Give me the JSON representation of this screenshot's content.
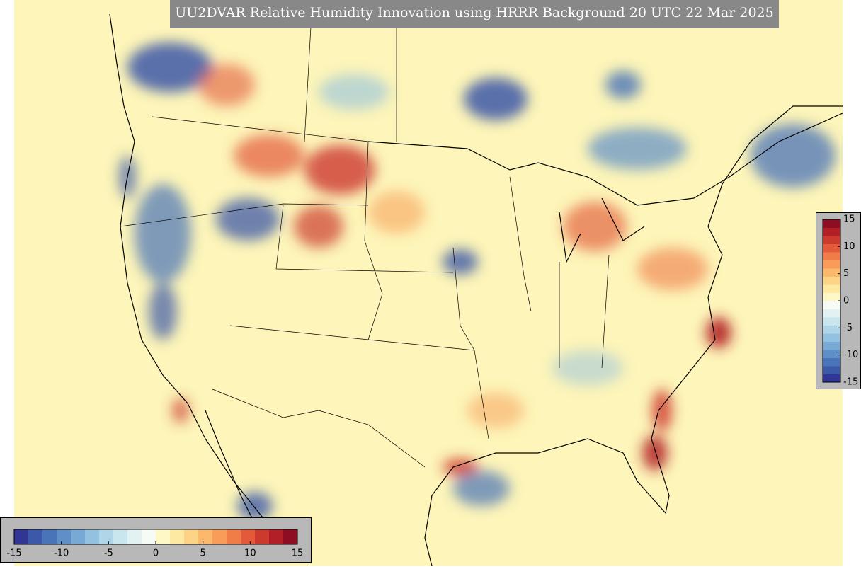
{
  "title": "UU2DVAR Relative Humidity Innovation using HRRR Background 20 UTC 22 Mar 2025",
  "colors": [
    "#313695",
    "#3c58a8",
    "#4a74b8",
    "#5e8fc7",
    "#77a9d4",
    "#93c2e0",
    "#aed6e8",
    "#c9e5ee",
    "#e2f1f2",
    "#f7fbf5",
    "#fdf8c6",
    "#fde9a2",
    "#fdd385",
    "#fcb96b",
    "#f89c57",
    "#f07c47",
    "#e35a3a",
    "#cc3a2e",
    "#b21f26",
    "#8f0d22"
  ],
  "colorbars": [
    {
      "orientation": "horizontal",
      "range": [
        -15,
        15
      ],
      "ticks": [
        -15,
        -10,
        -5,
        0,
        5,
        10,
        15
      ]
    },
    {
      "orientation": "vertical",
      "range": [
        -15,
        15
      ],
      "ticks": [
        15,
        10,
        5,
        0,
        -5,
        -10,
        -15
      ]
    }
  ]
}
